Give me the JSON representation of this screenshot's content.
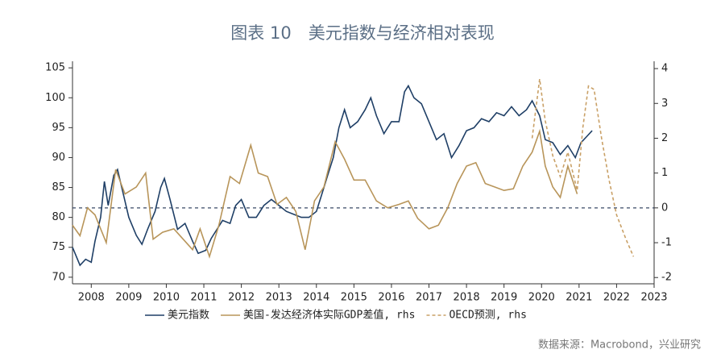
{
  "chart_data": {
    "type": "line",
    "title": "图表 10　美元指数与经济相对表现",
    "source": "数据来源：Macrobond，兴业研究",
    "xlim": [
      2008,
      2023.5
    ],
    "xticks": [
      {
        "value": 2008.5,
        "label": "2008"
      },
      {
        "value": 2009.5,
        "label": "2009"
      },
      {
        "value": 2010.5,
        "label": "2010"
      },
      {
        "value": 2011.5,
        "label": "2011"
      },
      {
        "value": 2012.5,
        "label": "2012"
      },
      {
        "value": 2013.5,
        "label": "2013"
      },
      {
        "value": 2014.5,
        "label": "2014"
      },
      {
        "value": 2015.5,
        "label": "2015"
      },
      {
        "value": 2016.5,
        "label": "2016"
      },
      {
        "value": 2017.5,
        "label": "2017"
      },
      {
        "value": 2018.5,
        "label": "2018"
      },
      {
        "value": 2019.5,
        "label": "2019"
      },
      {
        "value": 2020.5,
        "label": "2020"
      },
      {
        "value": 2021.5,
        "label": "2021"
      },
      {
        "value": 2022.5,
        "label": "2022"
      },
      {
        "value": 2023.5,
        "label": "2023"
      }
    ],
    "ylim": [
      68.9,
      106.1
    ],
    "yticks": [
      70,
      75,
      80,
      85,
      90,
      95,
      100,
      105
    ],
    "y2lim": [
      -2.18,
      4.21
    ],
    "y2ticks": [
      -2,
      -1,
      0,
      1,
      2,
      3,
      4
    ],
    "reference_line_y2": 0,
    "series": [
      {
        "name": "美元指数",
        "color": "#1f3f66",
        "dash": false,
        "x": [
          2008.0,
          2008.2,
          2008.35,
          2008.5,
          2008.6,
          2008.75,
          2008.85,
          2008.95,
          2009.1,
          2009.2,
          2009.35,
          2009.5,
          2009.7,
          2009.85,
          2010.0,
          2010.2,
          2010.35,
          2010.45,
          2010.6,
          2010.8,
          2011.0,
          2011.2,
          2011.35,
          2011.55,
          2011.7,
          2011.85,
          2012.0,
          2012.2,
          2012.35,
          2012.5,
          2012.7,
          2012.9,
          2013.1,
          2013.3,
          2013.5,
          2013.7,
          2013.9,
          2014.1,
          2014.3,
          2014.5,
          2014.65,
          2014.8,
          2014.95,
          2015.1,
          2015.25,
          2015.4,
          2015.6,
          2015.8,
          2015.95,
          2016.1,
          2016.3,
          2016.5,
          2016.7,
          2016.85,
          2016.95,
          2017.1,
          2017.3,
          2017.5,
          2017.7,
          2017.9,
          2018.1,
          2018.3,
          2018.5,
          2018.7,
          2018.9,
          2019.1,
          2019.3,
          2019.5,
          2019.7,
          2019.9,
          2020.1,
          2020.25,
          2020.45,
          2020.6,
          2020.8,
          2021.0,
          2021.2,
          2021.4,
          2021.55,
          2021.7,
          2021.85
        ],
        "values": [
          75,
          72,
          73,
          72.5,
          76,
          80,
          86,
          82,
          87,
          88,
          84,
          80,
          77,
          75.5,
          78,
          81,
          85,
          86.5,
          83,
          78,
          79,
          76,
          74,
          74.5,
          76.5,
          78,
          79.5,
          79,
          82,
          83,
          80,
          80,
          82,
          83,
          82,
          81,
          80.5,
          80,
          80,
          81,
          84,
          87,
          90,
          95,
          98,
          95,
          96,
          98,
          100,
          97,
          94,
          96,
          96,
          101,
          102,
          100,
          99,
          96,
          93,
          94,
          90,
          92,
          94.5,
          95,
          96.5,
          96,
          97.5,
          97,
          98.5,
          97,
          98,
          99.5,
          97,
          93,
          92.5,
          90.5,
          92,
          90,
          92.5,
          93.5,
          94.5
        ]
      },
      {
        "name": "美国-发达经济体实际GDP差值, rhs",
        "color": "#b8955a",
        "dash": false,
        "axis": "y2",
        "x": [
          2008.0,
          2008.2,
          2008.4,
          2008.6,
          2008.9,
          2009.15,
          2009.4,
          2009.7,
          2009.95,
          2010.15,
          2010.4,
          2010.7,
          2010.95,
          2011.2,
          2011.4,
          2011.65,
          2011.9,
          2012.2,
          2012.45,
          2012.75,
          2012.95,
          2013.2,
          2013.45,
          2013.7,
          2013.95,
          2014.2,
          2014.45,
          2014.7,
          2015.0,
          2015.25,
          2015.5,
          2015.8,
          2016.1,
          2016.4,
          2016.7,
          2016.95,
          2017.2,
          2017.5,
          2017.75,
          2018.0,
          2018.25,
          2018.5,
          2018.75,
          2019.0,
          2019.25,
          2019.5,
          2019.75,
          2020.0,
          2020.25,
          2020.45,
          2020.6,
          2020.8,
          2021.0,
          2021.2,
          2021.45
        ],
        "values": [
          -0.5,
          -0.8,
          0,
          -0.2,
          -1,
          1.1,
          0.4,
          0.6,
          1,
          -0.9,
          -0.7,
          -0.6,
          -0.9,
          -1.2,
          -0.6,
          -1.4,
          -0.5,
          0.9,
          0.7,
          1.8,
          1,
          0.9,
          0.1,
          0.3,
          -0.1,
          -1.2,
          0.2,
          0.6,
          1.9,
          1.4,
          0.8,
          0.8,
          0.2,
          0,
          0.1,
          0.2,
          -0.3,
          -0.6,
          -0.5,
          0,
          0.7,
          1.2,
          1.3,
          0.7,
          0.6,
          0.5,
          0.55,
          1.2,
          1.6,
          2.2,
          1.2,
          0.6,
          0.3,
          1.2,
          0.4
        ]
      },
      {
        "name": "OECD预测, rhs",
        "color": "#c9a066",
        "dash": true,
        "axis": "y2",
        "x": [
          2020.25,
          2020.45,
          2020.6,
          2020.8,
          2021.0,
          2021.2,
          2021.45,
          2021.6,
          2021.75,
          2021.9,
          2022.1,
          2022.3,
          2022.5,
          2022.75,
          2022.95
        ],
        "values": [
          2.0,
          3.7,
          2.5,
          1.5,
          0.9,
          1.6,
          0.5,
          2.3,
          3.5,
          3.4,
          2.0,
          0.8,
          -0.2,
          -0.9,
          -1.4
        ]
      }
    ]
  }
}
